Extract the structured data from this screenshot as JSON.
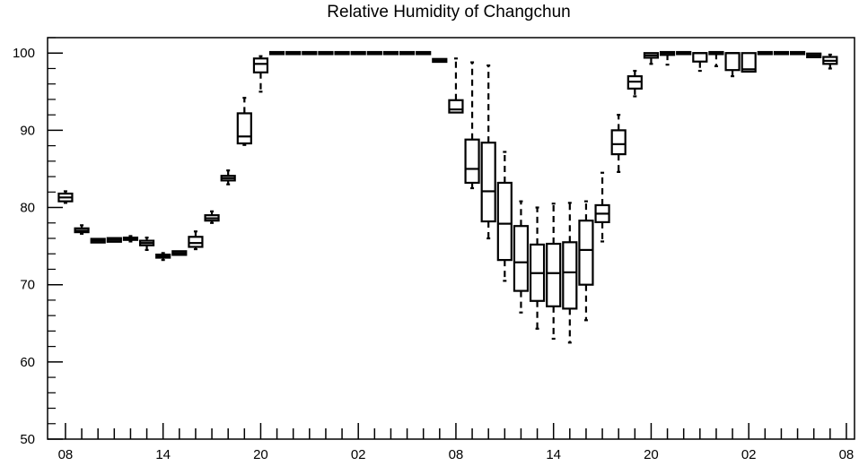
{
  "chart_data": {
    "type": "boxplot",
    "title": "Relative Humidity of Changchun",
    "xlabel": "",
    "ylabel": "",
    "ylim": [
      50,
      102
    ],
    "yticks": [
      50,
      60,
      70,
      80,
      90,
      100
    ],
    "xticks": [
      "08",
      "14",
      "20",
      "02",
      "08",
      "14",
      "20",
      "02",
      "08"
    ],
    "x_tick_hours": [
      0,
      6,
      12,
      18,
      24,
      30,
      36,
      42,
      48
    ],
    "grid": false,
    "boxes": [
      {
        "hour": 0,
        "whislo": 80.6,
        "q1": 80.8,
        "med": 81.3,
        "q3": 81.8,
        "whishi": 82.1
      },
      {
        "hour": 1,
        "whislo": 76.6,
        "q1": 76.8,
        "med": 77.0,
        "q3": 77.3,
        "whishi": 77.7
      },
      {
        "hour": 2,
        "whislo": 75.6,
        "q1": 75.6,
        "med": 75.7,
        "q3": 75.8,
        "whishi": 75.9
      },
      {
        "hour": 3,
        "whislo": 75.6,
        "q1": 75.7,
        "med": 75.8,
        "q3": 75.9,
        "whishi": 76.0
      },
      {
        "hour": 4,
        "whislo": 75.6,
        "q1": 75.8,
        "med": 75.9,
        "q3": 76.1,
        "whishi": 76.3
      },
      {
        "hour": 5,
        "whislo": 74.5,
        "q1": 75.1,
        "med": 75.4,
        "q3": 75.7,
        "whishi": 76.1
      },
      {
        "hour": 6,
        "whislo": 73.2,
        "q1": 73.5,
        "med": 73.7,
        "q3": 73.9,
        "whishi": 74.1
      },
      {
        "hour": 7,
        "whislo": 74.0,
        "q1": 74.0,
        "med": 74.1,
        "q3": 74.2,
        "whishi": 74.3
      },
      {
        "hour": 8,
        "whislo": 74.6,
        "q1": 74.9,
        "med": 75.4,
        "q3": 76.2,
        "whishi": 76.9
      },
      {
        "hour": 9,
        "whislo": 78.0,
        "q1": 78.3,
        "med": 78.6,
        "q3": 79.0,
        "whishi": 79.5
      },
      {
        "hour": 10,
        "whislo": 83.0,
        "q1": 83.5,
        "med": 83.8,
        "q3": 84.1,
        "whishi": 84.8
      },
      {
        "hour": 11,
        "whislo": 88.1,
        "q1": 88.3,
        "med": 89.2,
        "q3": 92.2,
        "whishi": 94.2
      },
      {
        "hour": 12,
        "whislo": 95.0,
        "q1": 97.5,
        "med": 98.6,
        "q3": 99.3,
        "whishi": 99.6
      },
      {
        "hour": 13,
        "whislo": 100.0,
        "q1": 100.0,
        "med": 100.0,
        "q3": 100.0,
        "whishi": 100.0
      },
      {
        "hour": 14,
        "whislo": 100.0,
        "q1": 100.0,
        "med": 100.0,
        "q3": 100.0,
        "whishi": 100.0
      },
      {
        "hour": 15,
        "whislo": 100.0,
        "q1": 100.0,
        "med": 100.0,
        "q3": 100.0,
        "whishi": 100.0
      },
      {
        "hour": 16,
        "whislo": 100.0,
        "q1": 100.0,
        "med": 100.0,
        "q3": 100.0,
        "whishi": 100.0
      },
      {
        "hour": 17,
        "whislo": 100.0,
        "q1": 100.0,
        "med": 100.0,
        "q3": 100.0,
        "whishi": 100.0
      },
      {
        "hour": 18,
        "whislo": 100.0,
        "q1": 100.0,
        "med": 100.0,
        "q3": 100.0,
        "whishi": 100.0
      },
      {
        "hour": 19,
        "whislo": 100.0,
        "q1": 100.0,
        "med": 100.0,
        "q3": 100.0,
        "whishi": 100.0
      },
      {
        "hour": 20,
        "whislo": 100.0,
        "q1": 100.0,
        "med": 100.0,
        "q3": 100.0,
        "whishi": 100.0
      },
      {
        "hour": 21,
        "whislo": 100.0,
        "q1": 100.0,
        "med": 100.0,
        "q3": 100.0,
        "whishi": 100.0
      },
      {
        "hour": 22,
        "whislo": 100.0,
        "q1": 100.0,
        "med": 100.0,
        "q3": 100.0,
        "whishi": 100.0
      },
      {
        "hour": 23,
        "whislo": 99.0,
        "q1": 99.0,
        "med": 99.0,
        "q3": 99.1,
        "whishi": 99.1
      },
      {
        "hour": 24,
        "whislo": 92.3,
        "q1": 92.3,
        "med": 92.7,
        "q3": 93.9,
        "whishi": 99.3
      },
      {
        "hour": 25,
        "whislo": 82.5,
        "q1": 83.2,
        "med": 85.0,
        "q3": 88.8,
        "whishi": 98.8
      },
      {
        "hour": 26,
        "whislo": 76.0,
        "q1": 78.2,
        "med": 82.1,
        "q3": 88.4,
        "whishi": 98.4
      },
      {
        "hour": 27,
        "whislo": 70.5,
        "q1": 73.2,
        "med": 77.9,
        "q3": 83.2,
        "whishi": 87.2
      },
      {
        "hour": 28,
        "whislo": 66.4,
        "q1": 69.2,
        "med": 72.9,
        "q3": 77.6,
        "whishi": 80.8
      },
      {
        "hour": 29,
        "whislo": 64.3,
        "q1": 67.9,
        "med": 71.5,
        "q3": 75.2,
        "whishi": 80.0
      },
      {
        "hour": 30,
        "whislo": 63.0,
        "q1": 67.2,
        "med": 71.5,
        "q3": 75.3,
        "whishi": 80.5
      },
      {
        "hour": 31,
        "whislo": 62.5,
        "q1": 66.9,
        "med": 71.6,
        "q3": 75.5,
        "whishi": 80.6
      },
      {
        "hour": 32,
        "whislo": 65.4,
        "q1": 70.0,
        "med": 74.5,
        "q3": 78.3,
        "whishi": 80.8
      },
      {
        "hour": 33,
        "whislo": 75.6,
        "q1": 78.1,
        "med": 79.2,
        "q3": 80.3,
        "whishi": 84.5
      },
      {
        "hour": 34,
        "whislo": 84.6,
        "q1": 86.9,
        "med": 88.2,
        "q3": 90.0,
        "whishi": 92.0
      },
      {
        "hour": 35,
        "whislo": 94.4,
        "q1": 95.4,
        "med": 96.3,
        "q3": 97.0,
        "whishi": 97.7
      },
      {
        "hour": 36,
        "whislo": 98.6,
        "q1": 99.4,
        "med": 99.7,
        "q3": 100.0,
        "whishi": 100.0
      },
      {
        "hour": 37,
        "whislo": 98.5,
        "q1": 99.9,
        "med": 100.0,
        "q3": 100.0,
        "whishi": 100.0
      },
      {
        "hour": 38,
        "whislo": 100.0,
        "q1": 100.0,
        "med": 100.0,
        "q3": 100.0,
        "whishi": 100.0
      },
      {
        "hour": 39,
        "whislo": 97.7,
        "q1": 98.9,
        "med": 100.0,
        "q3": 100.0,
        "whishi": 100.0
      },
      {
        "hour": 40,
        "whislo": 98.3,
        "q1": 100.0,
        "med": 100.0,
        "q3": 100.0,
        "whishi": 100.0
      },
      {
        "hour": 41,
        "whislo": 97.0,
        "q1": 97.8,
        "med": 100.0,
        "q3": 100.0,
        "whishi": 100.0
      },
      {
        "hour": 42,
        "whislo": 97.5,
        "q1": 97.6,
        "med": 97.9,
        "q3": 100.0,
        "whishi": 100.0
      },
      {
        "hour": 43,
        "whislo": 99.9,
        "q1": 100.0,
        "med": 100.0,
        "q3": 100.0,
        "whishi": 100.0
      },
      {
        "hour": 44,
        "whislo": 100.0,
        "q1": 100.0,
        "med": 100.0,
        "q3": 100.0,
        "whishi": 100.0
      },
      {
        "hour": 45,
        "whislo": 100.0,
        "q1": 100.0,
        "med": 100.0,
        "q3": 100.0,
        "whishi": 100.0
      },
      {
        "hour": 46,
        "whislo": 99.5,
        "q1": 99.6,
        "med": 99.7,
        "q3": 99.8,
        "whishi": 99.8
      },
      {
        "hour": 47,
        "whislo": 98.0,
        "q1": 98.6,
        "med": 99.0,
        "q3": 99.5,
        "whishi": 99.8
      }
    ]
  }
}
